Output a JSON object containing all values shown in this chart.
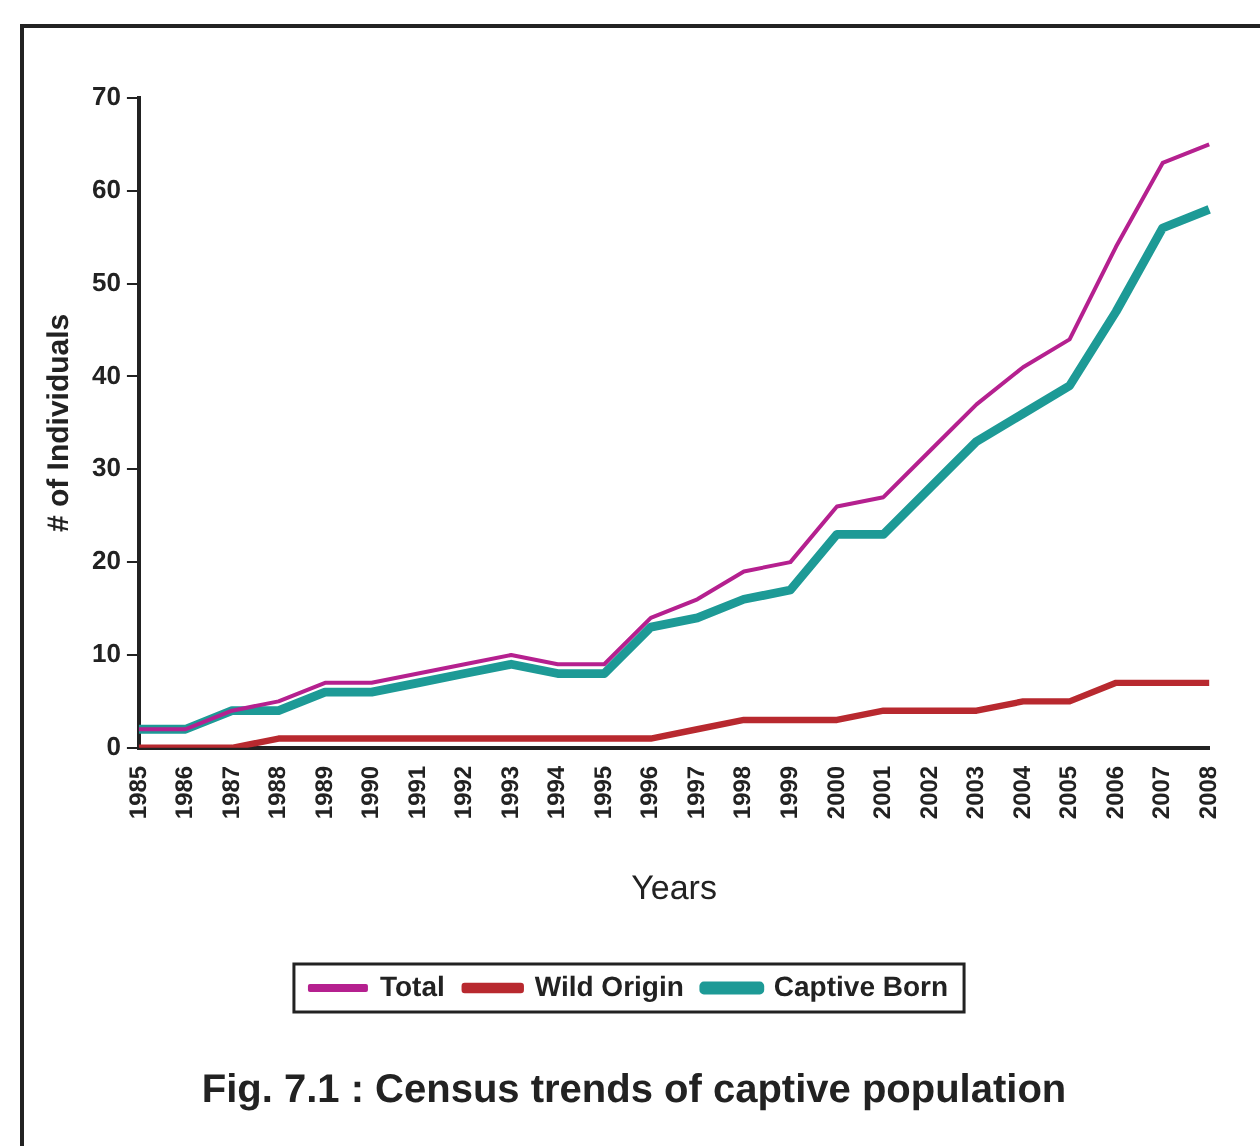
{
  "chart_data": {
    "type": "line",
    "xlabel": "Years",
    "ylabel": "# of Individuals",
    "categories": [
      "1985",
      "1986",
      "1987",
      "1988",
      "1989",
      "1990",
      "1991",
      "1992",
      "1993",
      "1994",
      "1995",
      "1996",
      "1997",
      "1998",
      "1999",
      "2000",
      "2001",
      "2002",
      "2003",
      "2004",
      "2005",
      "2006",
      "2007",
      "2008"
    ],
    "series": [
      {
        "name": "Total",
        "color": "#b5208f",
        "values": [
          2,
          2,
          4,
          5,
          7,
          7,
          8,
          9,
          10,
          9,
          9,
          14,
          16,
          19,
          20,
          26,
          27,
          32,
          37,
          41,
          44,
          54,
          63,
          65
        ]
      },
      {
        "name": "Wild Origin",
        "color": "#b8292f",
        "values": [
          0,
          0,
          0,
          1,
          1,
          1,
          1,
          1,
          1,
          1,
          1,
          1,
          2,
          3,
          3,
          3,
          4,
          4,
          4,
          5,
          5,
          7,
          7,
          7
        ]
      },
      {
        "name": "Captive Born",
        "color": "#1d9a96",
        "values": [
          2,
          2,
          4,
          4,
          6,
          6,
          7,
          8,
          9,
          8,
          8,
          13,
          14,
          16,
          17,
          23,
          23,
          28,
          33,
          36,
          39,
          47,
          56,
          58
        ]
      }
    ],
    "ylim": [
      0,
      70
    ],
    "yticks": [
      0,
      10,
      20,
      30,
      40,
      50,
      60,
      70
    ],
    "grid": false,
    "legend": "bottom",
    "marker": "none",
    "line_style": "solid",
    "annotations": [
      "Fig. 7.1 : Census trends of captive population"
    ]
  }
}
